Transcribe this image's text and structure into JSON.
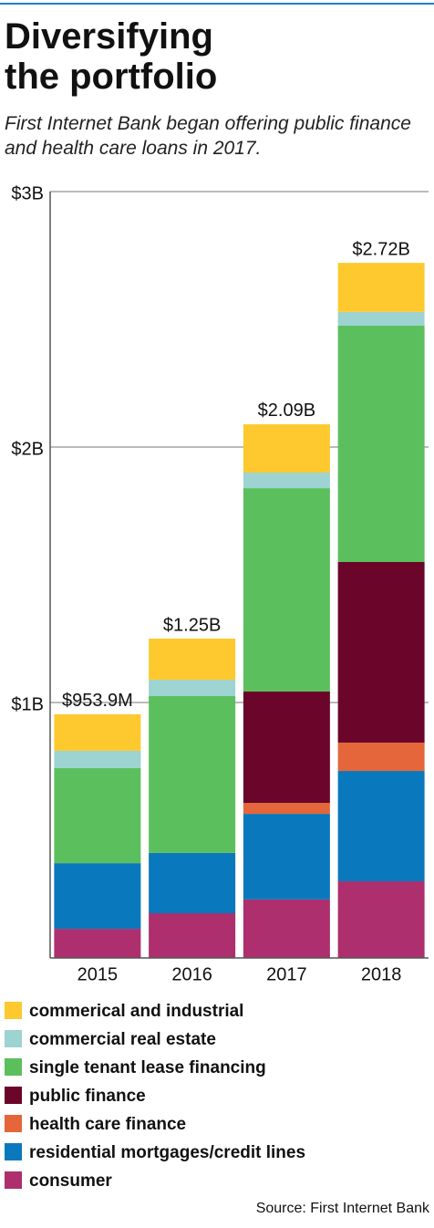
{
  "chart_data": {
    "type": "stacked-bar",
    "title": "Diversifying the portfolio",
    "subtitle": "First Internet Bank began offering public finance and health care loans in 2017.",
    "source": "Source: First Internet Bank",
    "categories": [
      "2015",
      "2016",
      "2017",
      "2018"
    ],
    "series": [
      {
        "name": "commerical and industrial",
        "color": "#fdc92f",
        "values": [
          0.143,
          0.161,
          0.189,
          0.192
        ]
      },
      {
        "name": "commercial real estate",
        "color": "#9dd3d0",
        "values": [
          0.068,
          0.064,
          0.061,
          0.054
        ]
      },
      {
        "name": "single tenant lease financing",
        "color": "#5cbf5e",
        "values": [
          0.372,
          0.614,
          0.796,
          0.925
        ]
      },
      {
        "name": "public finance",
        "color": "#6b0529",
        "values": [
          null,
          null,
          0.436,
          0.707
        ]
      },
      {
        "name": "health care finance",
        "color": "#e4663a",
        "values": [
          null,
          null,
          0.043,
          0.111
        ]
      },
      {
        "name": "residential mortgages/credit lines",
        "color": "#0a78bd",
        "values": [
          0.257,
          0.236,
          0.335,
          0.432
        ]
      },
      {
        "name": "consumer",
        "color": "#ad2f6e",
        "values": [
          0.114,
          0.175,
          0.229,
          0.3
        ]
      }
    ],
    "totals": {
      "values": [
        0.9539,
        1.25,
        2.09,
        2.72
      ],
      "value_labels": [
        "$953.9M",
        "$1.25B",
        "$2.09B",
        "$2.72B"
      ]
    },
    "ylim": [
      0,
      3
    ],
    "yticks": [
      {
        "value": 1,
        "label": "$1B"
      },
      {
        "value": 2,
        "label": "$2B"
      },
      {
        "value": 3,
        "label": "$3B"
      }
    ],
    "grid": true
  }
}
